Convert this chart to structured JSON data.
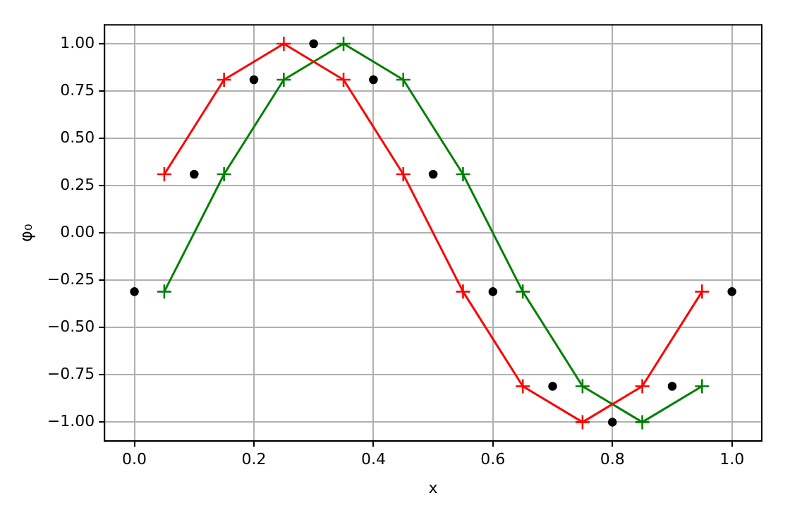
{
  "chart_data": {
    "type": "line",
    "xlabel": "x",
    "ylabel": "φ₀",
    "xlim": [
      -0.05,
      1.05
    ],
    "ylim": [
      -1.1,
      1.1
    ],
    "xticks": [
      {
        "value": 0,
        "label": "0.0"
      },
      {
        "value": 0.2,
        "label": "0.2"
      },
      {
        "value": 0.4,
        "label": "0.4"
      },
      {
        "value": 0.6,
        "label": "0.6"
      },
      {
        "value": 0.8,
        "label": "0.8"
      },
      {
        "value": 1,
        "label": "1.0"
      }
    ],
    "yticks": [
      {
        "value": -1,
        "label": "−1.00"
      },
      {
        "value": -0.75,
        "label": "−0.75"
      },
      {
        "value": -0.5,
        "label": "−0.50"
      },
      {
        "value": -0.25,
        "label": "−0.25"
      },
      {
        "value": 0,
        "label": "0.00"
      },
      {
        "value": 0.25,
        "label": "0.25"
      },
      {
        "value": 0.5,
        "label": "0.50"
      },
      {
        "value": 0.75,
        "label": "0.75"
      },
      {
        "value": 1,
        "label": "1.00"
      }
    ],
    "grid": true,
    "series": [
      {
        "type": "scatter",
        "color": "#000000",
        "marker": "circle",
        "x": [
          0,
          0.1,
          0.2,
          0.3,
          0.4,
          0.5,
          0.6,
          0.7,
          0.8,
          0.9,
          1.0
        ],
        "values": [
          -0.31,
          0.31,
          0.81,
          1.0,
          0.81,
          0.31,
          -0.31,
          -0.81,
          -1.0,
          -0.81,
          -0.31
        ]
      },
      {
        "type": "line",
        "color": "#ff0000",
        "marker": "cross",
        "x": [
          0.05,
          0.15,
          0.25,
          0.35,
          0.45,
          0.55,
          0.65,
          0.75,
          0.85,
          0.95
        ],
        "values": [
          0.31,
          0.81,
          1.0,
          0.81,
          0.31,
          -0.31,
          -0.81,
          -1.0,
          -0.81,
          -0.31
        ]
      },
      {
        "type": "line",
        "color": "#008000",
        "marker": "cross",
        "x": [
          0.05,
          0.15,
          0.25,
          0.35,
          0.45,
          0.55,
          0.65,
          0.75,
          0.85,
          0.95
        ],
        "values": [
          -0.31,
          0.31,
          0.81,
          1.0,
          0.81,
          0.31,
          -0.31,
          -0.81,
          -1.0,
          -0.81
        ]
      }
    ]
  }
}
